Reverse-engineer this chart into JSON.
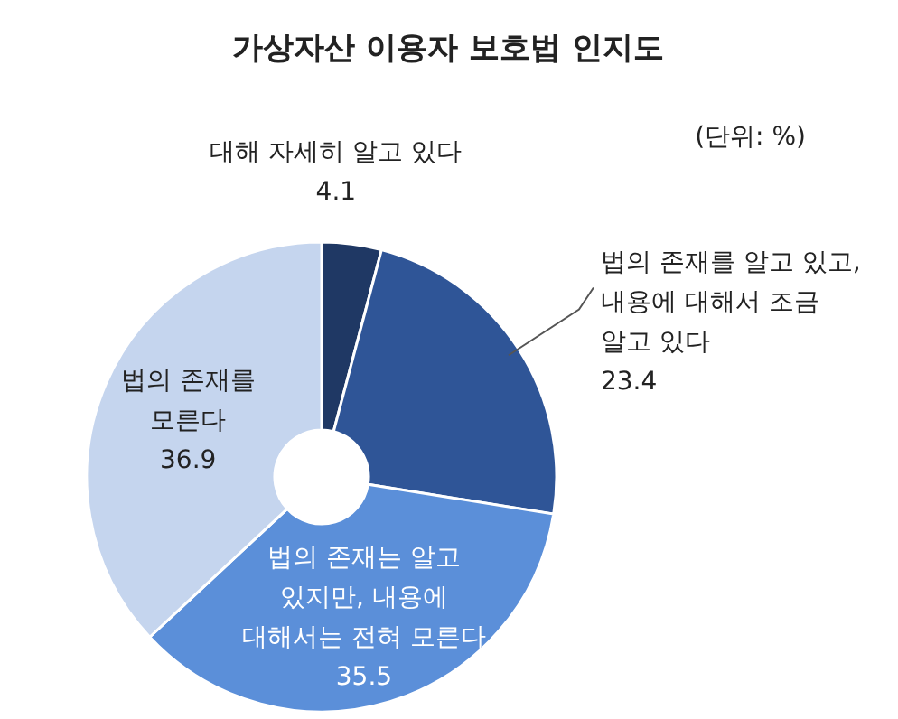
{
  "chart_data": {
    "type": "donut",
    "title": "가상자산 이용자 보호법 인지도",
    "annotations": [
      "(단위: %)"
    ],
    "categories": [
      "대해 자세히 알고 있다",
      "법의 존재를 알고 있고,\n내용에 대해서 조금\n알고 있다",
      "법의 존재는 알고\n있지만, 내용에\n대해서는 전혀 모른다",
      "법의 존재를\n모른다"
    ],
    "values": [
      4.1,
      23.4,
      35.5,
      36.9
    ],
    "colors": [
      "#1f3864",
      "#2f5597",
      "#5b8fd9",
      "#c5d5ee"
    ],
    "data_labels": true
  }
}
